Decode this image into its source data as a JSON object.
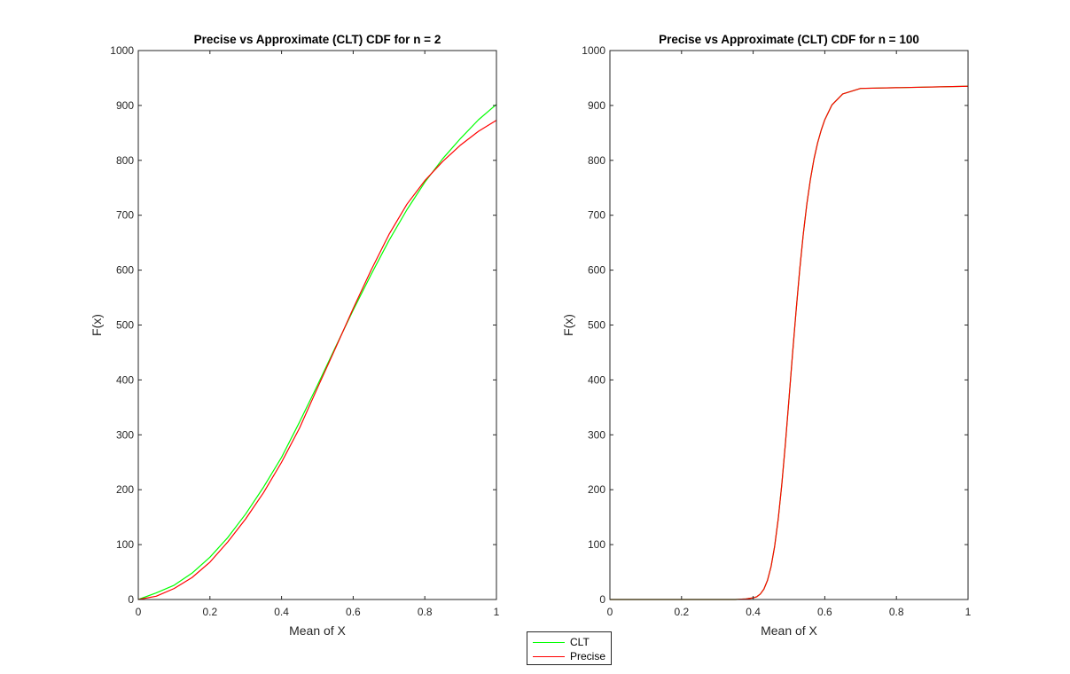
{
  "chart_data": [
    {
      "type": "line",
      "title": "Precise vs Approximate (CLT) CDF for n = 2",
      "xlabel": "Mean of X",
      "ylabel": "F(x)",
      "xlim": [
        0,
        1
      ],
      "ylim": [
        0,
        1000
      ],
      "xticks": [
        "0",
        "0.2",
        "0.4",
        "0.6",
        "0.8",
        "1"
      ],
      "yticks": [
        "0",
        "100",
        "200",
        "300",
        "400",
        "500",
        "600",
        "700",
        "800",
        "900",
        "1000"
      ],
      "grid": false,
      "series": [
        {
          "name": "CLT",
          "color": "#00ff00",
          "x": [
            0,
            0.05,
            0.1,
            0.15,
            0.2,
            0.25,
            0.3,
            0.35,
            0.4,
            0.45,
            0.5,
            0.55,
            0.6,
            0.65,
            0.7,
            0.75,
            0.8,
            0.85,
            0.9,
            0.95,
            1.0
          ],
          "y": [
            0,
            12,
            26,
            48,
            77,
            113,
            156,
            205,
            259,
            323,
            390,
            459,
            527,
            592,
            654,
            710,
            760,
            803,
            840,
            874,
            902
          ]
        },
        {
          "name": "Precise",
          "color": "#ff0000",
          "x": [
            0,
            0.05,
            0.1,
            0.15,
            0.2,
            0.25,
            0.3,
            0.35,
            0.4,
            0.45,
            0.5,
            0.55,
            0.6,
            0.65,
            0.7,
            0.75,
            0.8,
            0.85,
            0.9,
            0.95,
            1.0
          ],
          "y": [
            0,
            6,
            20,
            40,
            68,
            105,
            147,
            195,
            250,
            312,
            385,
            457,
            530,
            600,
            665,
            720,
            763,
            798,
            828,
            853,
            873
          ]
        }
      ]
    },
    {
      "type": "line",
      "title": "Precise vs Approximate (CLT) CDF for n = 100",
      "xlabel": "Mean of X",
      "ylabel": "F(x)",
      "xlim": [
        0,
        1
      ],
      "ylim": [
        0,
        1000
      ],
      "xticks": [
        "0",
        "0.2",
        "0.4",
        "0.6",
        "0.8",
        "1"
      ],
      "yticks": [
        "0",
        "100",
        "200",
        "300",
        "400",
        "500",
        "600",
        "700",
        "800",
        "900",
        "1000"
      ],
      "grid": false,
      "series": [
        {
          "name": "CLT",
          "color": "#00ff00",
          "x": [
            0,
            0.3,
            0.35,
            0.38,
            0.4,
            0.41,
            0.42,
            0.43,
            0.44,
            0.45,
            0.46,
            0.47,
            0.48,
            0.49,
            0.5,
            0.51,
            0.52,
            0.53,
            0.54,
            0.55,
            0.56,
            0.57,
            0.58,
            0.59,
            0.6,
            0.62,
            0.65,
            0.7,
            1.0
          ],
          "y": [
            0,
            0,
            0,
            1,
            3,
            5,
            10,
            19,
            35,
            60,
            97,
            147,
            210,
            284,
            365,
            448,
            527,
            601,
            666,
            721,
            766,
            803,
            832,
            855,
            874,
            901,
            921,
            931,
            935
          ]
        },
        {
          "name": "Precise",
          "color": "#ff0000",
          "x": [
            0,
            0.3,
            0.35,
            0.38,
            0.4,
            0.41,
            0.42,
            0.43,
            0.44,
            0.45,
            0.46,
            0.47,
            0.48,
            0.49,
            0.5,
            0.51,
            0.52,
            0.53,
            0.54,
            0.55,
            0.56,
            0.57,
            0.58,
            0.59,
            0.6,
            0.62,
            0.65,
            0.7,
            1.0
          ],
          "y": [
            0,
            0,
            0,
            1,
            3,
            5,
            10,
            19,
            35,
            60,
            97,
            147,
            210,
            284,
            365,
            448,
            527,
            601,
            666,
            721,
            766,
            803,
            832,
            855,
            874,
            901,
            921,
            931,
            935
          ]
        }
      ]
    }
  ],
  "legend": {
    "placement": "bottom-center",
    "entries": [
      {
        "label": "CLT",
        "color": "#00ff00"
      },
      {
        "label": "Precise",
        "color": "#ff0000"
      }
    ]
  }
}
